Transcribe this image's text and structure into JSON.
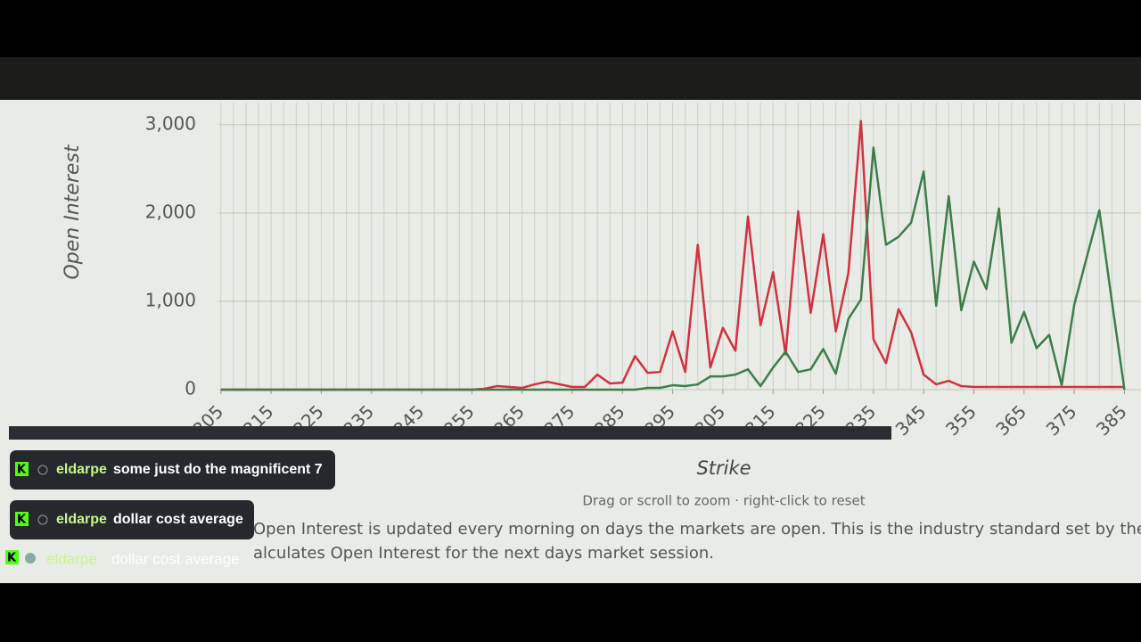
{
  "chart_data": {
    "type": "line",
    "y_label": "Open Interest",
    "x_label": "Strike",
    "hint": "Drag or scroll to zoom · right-click to reset",
    "x": [
      205,
      207.5,
      210,
      212.5,
      215,
      217.5,
      220,
      222.5,
      225,
      227.5,
      230,
      232.5,
      235,
      237.5,
      240,
      242.5,
      245,
      247.5,
      250,
      252.5,
      255,
      257.5,
      260,
      262.5,
      265,
      267.5,
      270,
      272.5,
      275,
      277.5,
      280,
      282.5,
      285,
      287.5,
      290,
      292.5,
      295,
      297.5,
      300,
      302.5,
      305,
      307.5,
      310,
      312.5,
      315,
      317.5,
      320,
      322.5,
      325,
      327.5,
      330,
      332.5,
      335,
      337.5,
      340,
      342.5,
      345,
      347.5,
      350,
      352.5,
      355,
      357.5,
      360,
      362.5,
      365,
      367.5,
      370,
      372.5,
      375,
      377.5,
      380,
      382.5,
      385
    ],
    "series": [
      {
        "color": "#d2313f",
        "values": [
          0,
          0,
          0,
          0,
          0,
          0,
          0,
          0,
          0,
          0,
          0,
          0,
          0,
          0,
          0,
          0,
          0,
          0,
          0,
          0,
          0,
          10,
          40,
          30,
          20,
          60,
          90,
          60,
          30,
          30,
          170,
          70,
          80,
          380,
          190,
          200,
          660,
          200,
          1640,
          250,
          700,
          440,
          1960,
          730,
          1330,
          400,
          2020,
          870,
          1760,
          660,
          1320,
          3040,
          570,
          300,
          910,
          650,
          170,
          60,
          100,
          40,
          30,
          30,
          30,
          30,
          30,
          30,
          30,
          30,
          30,
          30,
          30,
          30,
          30
        ]
      },
      {
        "color": "#3e7d4b",
        "values": [
          0,
          0,
          0,
          0,
          0,
          0,
          0,
          0,
          0,
          0,
          0,
          0,
          0,
          0,
          0,
          0,
          0,
          0,
          0,
          0,
          0,
          0,
          0,
          0,
          0,
          0,
          0,
          0,
          0,
          0,
          0,
          0,
          0,
          0,
          20,
          20,
          50,
          40,
          60,
          150,
          150,
          170,
          230,
          40,
          250,
          430,
          200,
          230,
          460,
          180,
          800,
          1020,
          2740,
          1640,
          1730,
          1890,
          2470,
          950,
          2190,
          900,
          1450,
          1140,
          2050,
          530,
          880,
          470,
          620,
          50,
          960,
          1500,
          2030,
          1000,
          0
        ]
      }
    ],
    "xlim": [
      204.5,
      388.3
    ],
    "xticks": [
      205,
      215,
      225,
      235,
      245,
      255,
      265,
      275,
      285,
      295,
      305,
      315,
      325,
      335,
      345,
      355,
      365,
      375,
      385
    ],
    "ylim": [
      0,
      3250
    ],
    "yticks": [
      0,
      {
        "value": 1000,
        "label": "1,000"
      },
      {
        "value": 2000,
        "label": "2,000"
      },
      {
        "value": 3000,
        "label": "3,000"
      }
    ],
    "grid": true
  },
  "note": [
    "Open Interest is updated every morning on days the markets are open. This is the industry standard set by the OC",
    "alculates Open Interest for the next days market session."
  ],
  "chat": [
    {
      "user": "eldarpe",
      "text": "some just do the magnificent 7"
    },
    {
      "user": "eldarpe",
      "text": "dollar cost average"
    },
    {
      "user": "eldarpe",
      "text": "dollar cost average"
    }
  ]
}
